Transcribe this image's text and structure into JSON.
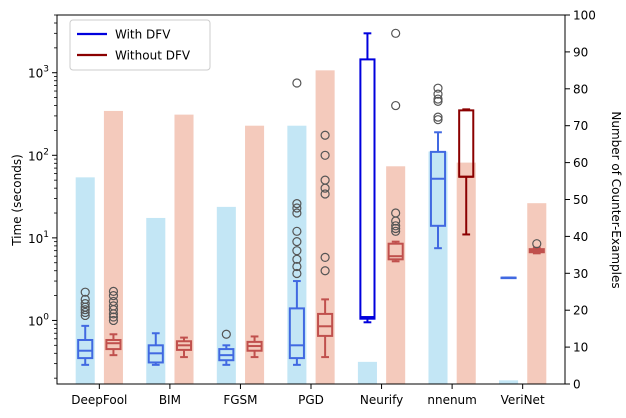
{
  "chart_data": {
    "type": "box+bar",
    "categories": [
      "DeepFool",
      "BIM",
      "FGSM",
      "PGD",
      "Neurify",
      "nnenum",
      "VeriNet"
    ],
    "left_axis": {
      "label": "Time (seconds)",
      "scale": "log",
      "ylim": [
        0.17,
        5000
      ],
      "tick_labels": [
        "10^0",
        "10^1",
        "10^2",
        "10^3"
      ],
      "tick_values": [
        1,
        10,
        100,
        1000
      ]
    },
    "right_axis": {
      "label": "Number of Counter-Examples",
      "scale": "linear",
      "ylim": [
        0,
        100
      ],
      "tick_labels": [
        "0",
        "10",
        "20",
        "30",
        "40",
        "50",
        "60",
        "70",
        "80",
        "90",
        "100"
      ],
      "tick_values": [
        0,
        10,
        20,
        30,
        40,
        50,
        60,
        70,
        80,
        90,
        100
      ]
    },
    "legend": {
      "placement": "top-left",
      "entries": [
        {
          "label": "With DFV",
          "color": "#0000dd"
        },
        {
          "label": "Without DFV",
          "color": "#8b0000"
        }
      ]
    },
    "counter_examples": {
      "with_dfv": [
        56,
        45,
        48,
        70,
        6,
        63,
        1
      ],
      "without_dfv": [
        74,
        73,
        70,
        85,
        59,
        60,
        49
      ]
    },
    "time_boxes": {
      "with_dfv": [
        {
          "whislo": 0.29,
          "q1": 0.35,
          "med": 0.43,
          "q3": 0.58,
          "whishi": 0.86,
          "fliers": [
            1.15,
            1.25,
            1.35,
            1.45,
            1.6,
            1.8,
            2.2
          ]
        },
        {
          "whislo": 0.29,
          "q1": 0.31,
          "med": 0.4,
          "q3": 0.5,
          "whishi": 0.7,
          "fliers": []
        },
        {
          "whislo": 0.29,
          "q1": 0.33,
          "med": 0.38,
          "q3": 0.45,
          "whishi": 0.5,
          "fliers": [
            0.68
          ]
        },
        {
          "whislo": 0.29,
          "q1": 0.35,
          "med": 0.5,
          "q3": 1.4,
          "whishi": 3.0,
          "fliers": [
            3.7,
            4.5,
            5.5,
            7.0,
            9.0,
            12.0,
            20.0,
            23.0,
            26.0,
            750.0
          ]
        },
        {
          "whislo": 0.95,
          "q1": 1.05,
          "med": 1.1,
          "q3": 1450.0,
          "whishi": 3000.0,
          "fliers": []
        },
        {
          "whislo": 7.5,
          "q1": 14.0,
          "med": 52.0,
          "q3": 110.0,
          "whishi": 190.0,
          "fliers": [
            270.0,
            290.0,
            450.0,
            480.0,
            550.0,
            650.0
          ]
        },
        {
          "whislo": 3.3,
          "q1": 3.3,
          "med": 3.3,
          "q3": 3.3,
          "whishi": 3.3,
          "fliers": []
        }
      ],
      "without_dfv": [
        {
          "whislo": 0.38,
          "q1": 0.45,
          "med": 0.53,
          "q3": 0.58,
          "whishi": 0.68,
          "fliers": [
            1.0,
            1.1,
            1.2,
            1.35,
            1.5,
            1.7,
            2.0,
            2.25
          ]
        },
        {
          "whislo": 0.36,
          "q1": 0.44,
          "med": 0.5,
          "q3": 0.56,
          "whishi": 0.62,
          "fliers": []
        },
        {
          "whislo": 0.36,
          "q1": 0.43,
          "med": 0.49,
          "q3": 0.55,
          "whishi": 0.64,
          "fliers": []
        },
        {
          "whislo": 0.36,
          "q1": 0.65,
          "med": 0.85,
          "q3": 1.2,
          "whishi": 1.8,
          "fliers": [
            4.0,
            5.8,
            34.0,
            40.0,
            50.0,
            100.0,
            175.0
          ]
        },
        {
          "whislo": 5.2,
          "q1": 5.5,
          "med": 6.0,
          "q3": 8.5,
          "whishi": 9.0,
          "fliers": [
            12.0,
            13.0,
            14.0,
            16.0,
            20.0,
            400.0,
            3000.0
          ]
        },
        {
          "whislo": 11.0,
          "q1": 55.0,
          "med": 55.0,
          "q3": 350.0,
          "whishi": 360.0,
          "fliers": []
        },
        {
          "whislo": 6.5,
          "q1": 6.7,
          "med": 7.0,
          "q3": 7.3,
          "whishi": 7.6,
          "fliers": [
            8.5
          ]
        }
      ]
    },
    "colors": {
      "with_dfv_bar": "#87CEEB",
      "without_dfv_bar": "#E9967A",
      "with_dfv_box": "#4169E1",
      "without_dfv_box": "#C0504D",
      "neurify_box": "#0000dd",
      "nnenum_without_box": "#8b0000"
    }
  }
}
